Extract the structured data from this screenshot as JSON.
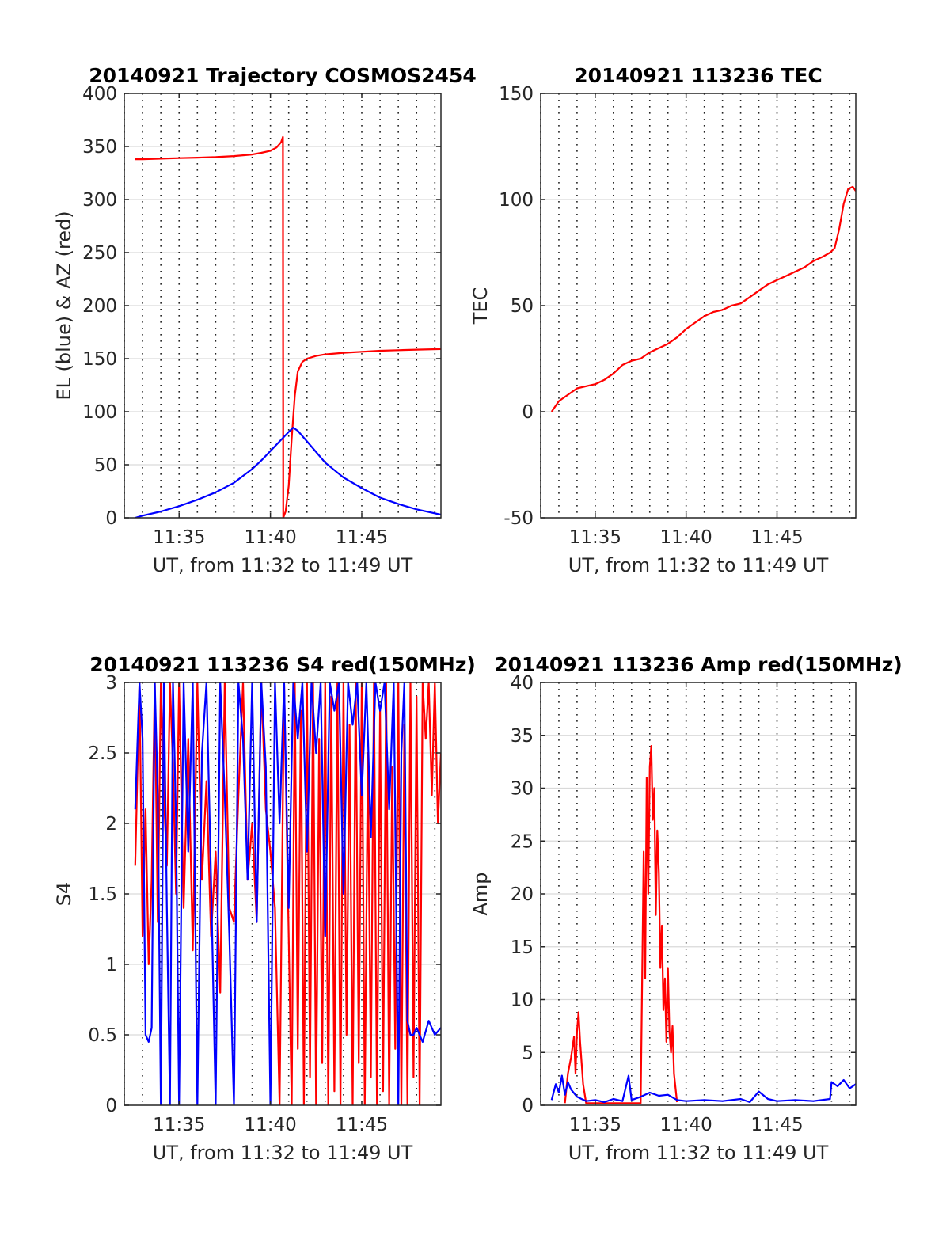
{
  "figure": {
    "background": "#ffffff",
    "gridline_color": "#d9d9d9",
    "axis_color": "#262626"
  },
  "chart_data": [
    {
      "type": "line",
      "title": "20140921 Trajectory COSMOS2454",
      "xlabel": "UT, from 11:32 to 11:49 UT",
      "ylabel": "EL (blue) & AZ (red)",
      "xlim": [
        "11:32:00",
        "11:49:20"
      ],
      "ylim": [
        0,
        400
      ],
      "x_ticks": [
        "11:35",
        "11:40",
        "11:45"
      ],
      "y_ticks": [
        "0",
        "50",
        "100",
        "150",
        "200",
        "250",
        "300",
        "350",
        "400"
      ],
      "grid": true,
      "legend": "none",
      "series": [
        {
          "color": "#ff0000",
          "x": [
            "11:32:36",
            "11:33:00",
            "11:34:00",
            "11:35:00",
            "11:36:00",
            "11:37:00",
            "11:38:00",
            "11:39:00",
            "11:39:30",
            "11:40:00",
            "11:40:20",
            "11:40:35",
            "11:40:41",
            "11:40:42",
            "11:40:50",
            "11:41:00",
            "11:41:10",
            "11:41:20",
            "11:41:30",
            "11:41:45",
            "11:42:00",
            "11:42:30",
            "11:43:00",
            "11:44:00",
            "11:45:00",
            "11:46:00",
            "11:47:00",
            "11:48:00",
            "11:49:20"
          ],
          "values": [
            338,
            338,
            338.5,
            339,
            339.5,
            340,
            341,
            342.5,
            344,
            346,
            349,
            354,
            359,
            0,
            6,
            30,
            75,
            115,
            138,
            147,
            150,
            152.5,
            154,
            155.5,
            156.5,
            157.5,
            158,
            158.5,
            159
          ]
        },
        {
          "color": "#0000ff",
          "x": [
            "11:32:36",
            "11:33:00",
            "11:34:00",
            "11:35:00",
            "11:36:00",
            "11:37:00",
            "11:38:00",
            "11:39:00",
            "11:39:30",
            "11:40:00",
            "11:40:30",
            "11:41:00",
            "11:41:15",
            "11:41:30",
            "11:42:00",
            "11:42:30",
            "11:43:00",
            "11:44:00",
            "11:45:00",
            "11:46:00",
            "11:47:00",
            "11:48:00",
            "11:49:20"
          ],
          "values": [
            0,
            2,
            6,
            11,
            17,
            24,
            33,
            46,
            54,
            63,
            72,
            81,
            85,
            82,
            72,
            62,
            52,
            38,
            28,
            19,
            13,
            8,
            3
          ]
        }
      ]
    },
    {
      "type": "line",
      "title": "20140921 113236 TEC",
      "xlabel": "UT, from 11:32 to 11:49 UT",
      "ylabel": "TEC",
      "xlim": [
        "11:32:00",
        "11:49:20"
      ],
      "ylim": [
        -50,
        150
      ],
      "x_ticks": [
        "11:35",
        "11:40",
        "11:45"
      ],
      "y_ticks": [
        "-50",
        "0",
        "50",
        "100",
        "150"
      ],
      "grid": true,
      "legend": "none",
      "series": [
        {
          "color": "#ff0000",
          "x": [
            "11:32:36",
            "11:33:00",
            "11:33:30",
            "11:34:00",
            "11:34:30",
            "11:35:00",
            "11:35:30",
            "11:36:00",
            "11:36:30",
            "11:37:00",
            "11:37:30",
            "11:38:00",
            "11:38:30",
            "11:39:00",
            "11:39:30",
            "11:40:00",
            "11:40:30",
            "11:41:00",
            "11:41:30",
            "11:42:00",
            "11:42:30",
            "11:43:00",
            "11:43:30",
            "11:44:00",
            "11:44:30",
            "11:45:00",
            "11:45:30",
            "11:46:00",
            "11:46:30",
            "11:47:00",
            "11:47:30",
            "11:47:55",
            "11:48:10",
            "11:48:25",
            "11:48:40",
            "11:48:55",
            "11:49:10",
            "11:49:20"
          ],
          "values": [
            0,
            5,
            8,
            11,
            12,
            13,
            15,
            18,
            22,
            24,
            25,
            28,
            30,
            32,
            35,
            39,
            42,
            45,
            47,
            48,
            50,
            51,
            54,
            57,
            60,
            62,
            64,
            66,
            68,
            71,
            73,
            75,
            77,
            86,
            98,
            105,
            106,
            104
          ]
        }
      ]
    },
    {
      "type": "line",
      "title": "20140921 113236 S4 red(150MHz)",
      "xlabel": "UT, from 11:32 to 11:49 UT",
      "ylabel": "S4",
      "xlim": [
        "11:32:00",
        "11:49:20"
      ],
      "ylim": [
        0,
        3
      ],
      "x_ticks": [
        "11:35",
        "11:40",
        "11:45"
      ],
      "y_ticks": [
        "0",
        "0.5",
        "1",
        "1.5",
        "2",
        "2.5",
        "3"
      ],
      "grid": true,
      "legend": "none",
      "series": [
        {
          "color": "#ff0000",
          "x": [
            "11:32:36",
            "11:32:50",
            "11:33:00",
            "11:33:10",
            "11:33:20",
            "11:33:30",
            "11:33:40",
            "11:33:50",
            "11:34:00",
            "11:34:10",
            "11:34:20",
            "11:34:30",
            "11:34:40",
            "11:34:50",
            "11:35:00",
            "11:35:15",
            "11:35:30",
            "11:35:45",
            "11:36:00",
            "11:36:15",
            "11:36:30",
            "11:36:45",
            "11:37:00",
            "11:37:15",
            "11:37:30",
            "11:37:45",
            "11:38:00",
            "11:38:15",
            "11:38:30",
            "11:38:45",
            "11:39:00",
            "11:39:15",
            "11:39:30",
            "11:39:45",
            "11:40:00",
            "11:40:15",
            "11:40:30",
            "11:40:45",
            "11:41:00",
            "11:41:10",
            "11:41:20",
            "11:41:30",
            "11:41:40",
            "11:41:50",
            "11:42:00",
            "11:42:10",
            "11:42:20",
            "11:42:30",
            "11:42:40",
            "11:42:50",
            "11:43:00",
            "11:43:10",
            "11:43:20",
            "11:43:30",
            "11:43:40",
            "11:43:50",
            "11:44:00",
            "11:44:10",
            "11:44:20",
            "11:44:30",
            "11:44:40",
            "11:44:50",
            "11:45:00",
            "11:45:10",
            "11:45:20",
            "11:45:30",
            "11:45:40",
            "11:45:50",
            "11:46:00",
            "11:46:10",
            "11:46:20",
            "11:46:30",
            "11:46:40",
            "11:46:50",
            "11:47:00",
            "11:47:10",
            "11:47:20",
            "11:47:30",
            "11:47:40",
            "11:47:50",
            "11:48:00",
            "11:48:10",
            "11:48:20",
            "11:48:30",
            "11:48:40",
            "11:48:50",
            "11:49:00",
            "11:49:10",
            "11:49:20"
          ],
          "values": [
            1.7,
            3,
            1.2,
            2.1,
            1.0,
            1.6,
            3,
            1.3,
            3,
            2.2,
            1.7,
            3,
            2.4,
            1.5,
            3,
            1.4,
            2.6,
            1.1,
            3,
            1.6,
            2.3,
            1.2,
            1.8,
            0.8,
            3,
            1.4,
            1.3,
            2.2,
            3,
            1.6,
            2.0,
            1.3,
            3,
            2.1,
            1.8,
            1.4,
            0,
            3,
            1.2,
            0,
            3,
            0.4,
            2.8,
            0,
            3,
            0.2,
            3,
            0,
            2.6,
            0.3,
            3,
            0,
            2.9,
            0.1,
            3,
            0,
            3,
            0.5,
            2.7,
            0,
            3,
            0.3,
            3,
            0,
            2.5,
            0.2,
            3,
            0,
            2.8,
            0.1,
            3,
            0,
            2.4,
            0.4,
            3,
            0,
            2.7,
            0,
            3,
            0.2,
            2.9,
            0,
            3,
            2.6,
            3,
            2.2,
            3,
            2.0,
            2.5
          ]
        },
        {
          "color": "#0000ff",
          "x": [
            "11:32:36",
            "11:32:50",
            "11:33:00",
            "11:33:10",
            "11:33:20",
            "11:33:30",
            "11:33:40",
            "11:33:50",
            "11:34:00",
            "11:34:10",
            "11:34:20",
            "11:34:30",
            "11:34:40",
            "11:34:50",
            "11:35:00",
            "11:35:15",
            "11:35:30",
            "11:35:45",
            "11:36:00",
            "11:36:15",
            "11:36:30",
            "11:36:45",
            "11:37:00",
            "11:37:15",
            "11:37:30",
            "11:37:45",
            "11:38:00",
            "11:38:15",
            "11:38:30",
            "11:38:45",
            "11:39:00",
            "11:39:15",
            "11:39:30",
            "11:39:45",
            "11:40:00",
            "11:40:15",
            "11:40:30",
            "11:40:45",
            "11:41:00",
            "11:41:15",
            "11:41:30",
            "11:41:45",
            "11:42:00",
            "11:42:15",
            "11:42:30",
            "11:42:45",
            "11:43:00",
            "11:43:15",
            "11:43:30",
            "11:43:45",
            "11:44:00",
            "11:44:15",
            "11:44:30",
            "11:44:45",
            "11:45:00",
            "11:45:15",
            "11:45:30",
            "11:45:45",
            "11:46:00",
            "11:46:15",
            "11:46:30",
            "11:46:45",
            "11:47:00",
            "11:47:10",
            "11:47:20",
            "11:47:30",
            "11:47:40",
            "11:47:50",
            "11:48:00",
            "11:48:20",
            "11:48:40",
            "11:49:00",
            "11:49:20"
          ],
          "values": [
            2.1,
            3,
            2.6,
            0.5,
            0.45,
            0.55,
            3,
            2.2,
            0,
            3,
            1.4,
            0,
            3,
            2.0,
            0,
            3,
            1.8,
            3,
            0,
            2.5,
            3,
            1.6,
            0,
            3,
            2.2,
            1.2,
            0,
            3,
            2.6,
            1.6,
            3,
            1.3,
            3,
            2.4,
            0,
            3,
            2.0,
            3,
            1.4,
            3,
            2.6,
            3,
            1.8,
            3,
            2.5,
            3,
            1.2,
            3,
            2.8,
            3,
            1.5,
            3,
            2.7,
            3,
            2.2,
            3,
            1.9,
            3,
            2.8,
            3,
            2.1,
            3,
            0,
            2.5,
            3,
            0.6,
            0.5,
            0.5,
            0.55,
            0.45,
            0.6,
            0.5,
            0.55
          ]
        }
      ]
    },
    {
      "type": "line",
      "title": "20140921 113236 Amp red(150MHz)",
      "xlabel": "UT, from 11:32 to 11:49 UT",
      "ylabel": "Amp",
      "xlim": [
        "11:32:00",
        "11:49:20"
      ],
      "ylim": [
        0,
        40
      ],
      "x_ticks": [
        "11:35",
        "11:40",
        "11:45"
      ],
      "y_ticks": [
        "0",
        "5",
        "10",
        "15",
        "20",
        "25",
        "30",
        "35",
        "40"
      ],
      "grid": true,
      "legend": "none",
      "series": [
        {
          "color": "#ff0000",
          "x": [
            "11:33:20",
            "11:33:30",
            "11:33:40",
            "11:33:50",
            "11:33:55",
            "11:34:00",
            "11:34:05",
            "11:34:10",
            "11:34:15",
            "11:34:20",
            "11:34:30",
            "11:37:30",
            "11:37:40",
            "11:37:45",
            "11:37:50",
            "11:37:55",
            "11:38:00",
            "11:38:05",
            "11:38:10",
            "11:38:15",
            "11:38:20",
            "11:38:25",
            "11:38:30",
            "11:38:35",
            "11:38:40",
            "11:38:45",
            "11:38:50",
            "11:38:55",
            "11:39:00",
            "11:39:05",
            "11:39:10",
            "11:39:15",
            "11:39:20",
            "11:39:30"
          ],
          "values": [
            0.2,
            3,
            4.5,
            6.5,
            3,
            7,
            8.8,
            6,
            4,
            2,
            0.2,
            0.2,
            24,
            12,
            31,
            20,
            32,
            34,
            27,
            30,
            18,
            26,
            22,
            13,
            17,
            9,
            12,
            6,
            13,
            7,
            5,
            7.5,
            3,
            0.3
          ]
        },
        {
          "color": "#0000ff",
          "x": [
            "11:32:36",
            "11:32:50",
            "11:33:00",
            "11:33:10",
            "11:33:20",
            "11:33:30",
            "11:33:40",
            "11:34:00",
            "11:34:30",
            "11:35:00",
            "11:35:30",
            "11:36:00",
            "11:36:30",
            "11:36:50",
            "11:37:00",
            "11:37:30",
            "11:38:00",
            "11:38:30",
            "11:39:00",
            "11:39:30",
            "11:40:00",
            "11:41:00",
            "11:42:00",
            "11:43:00",
            "11:43:30",
            "11:44:00",
            "11:44:30",
            "11:45:00",
            "11:46:00",
            "11:47:00",
            "11:47:55",
            "11:48:00",
            "11:48:20",
            "11:48:40",
            "11:49:00",
            "11:49:20"
          ],
          "values": [
            0.5,
            2,
            1.2,
            2.8,
            1.0,
            2.2,
            1.5,
            0.8,
            0.4,
            0.5,
            0.3,
            0.6,
            0.4,
            2.8,
            0.5,
            0.8,
            1.2,
            0.9,
            1.0,
            0.5,
            0.4,
            0.5,
            0.4,
            0.6,
            0.3,
            1.3,
            0.6,
            0.4,
            0.5,
            0.4,
            0.6,
            2.2,
            1.8,
            2.4,
            1.6,
            2.0
          ]
        }
      ]
    }
  ]
}
